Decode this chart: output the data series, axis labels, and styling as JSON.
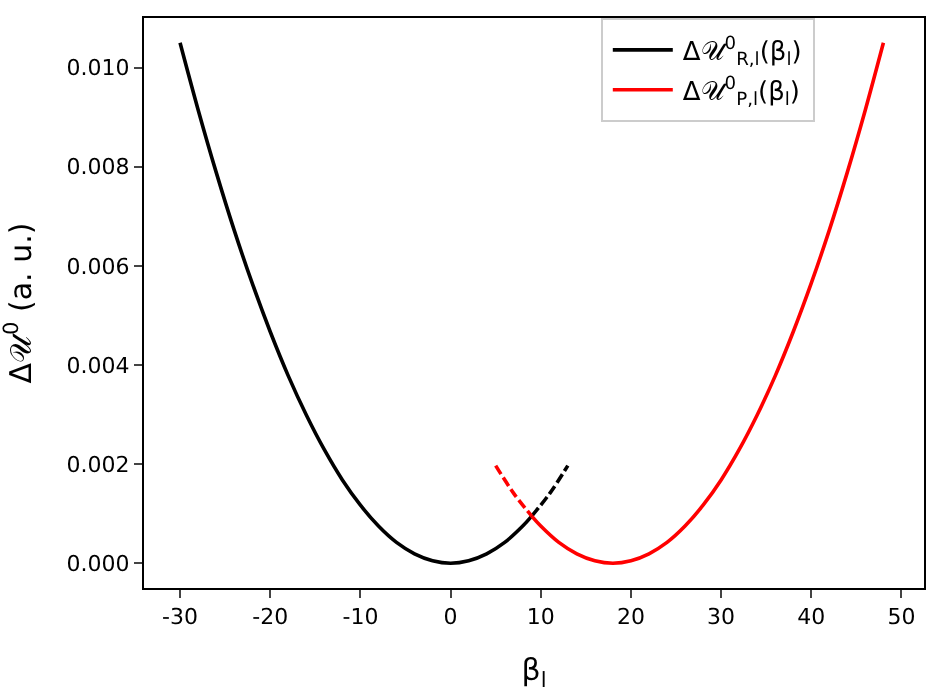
{
  "chart_data": {
    "type": "line",
    "xlabel": "β$_{l}$",
    "ylabel": "Δ𝒰$^{0}$ (a. u.)",
    "series": [
      {
        "name": "Δ𝒰$^{0}$$_{R,l}$(β$_{l}$)",
        "color": "#000000",
        "line_style": "solid",
        "x": [
          -30,
          -28,
          -26,
          -24,
          -22,
          -20,
          -18,
          -16,
          -14,
          -12,
          -10,
          -8,
          -6,
          -4,
          -2,
          0,
          2,
          4,
          6,
          8,
          9
        ],
        "values": [
          0.0105,
          0.00915,
          0.00789,
          0.00672,
          0.00565,
          0.00467,
          0.00378,
          0.00299,
          0.00229,
          0.00168,
          0.00117,
          0.00075,
          0.00042,
          0.00019,
          5e-05,
          0,
          5e-05,
          0.00019,
          0.00042,
          0.00075,
          0.00095
        ]
      },
      {
        "color": "#000000",
        "line_style": "dashed",
        "x": [
          9,
          11,
          13
        ],
        "values": [
          0.00095,
          0.00141,
          0.00197
        ]
      },
      {
        "name": "Δ𝒰$^{0}$$_{P,l}$(β$_{l}$)",
        "color": "#ff0000",
        "line_style": "solid",
        "x": [
          9,
          10,
          12,
          14,
          16,
          18,
          20,
          22,
          24,
          26,
          28,
          30,
          32,
          34,
          36,
          38,
          40,
          42,
          44,
          46,
          48
        ],
        "values": [
          0.00095,
          0.00075,
          0.00042,
          0.00019,
          5e-05,
          0,
          5e-05,
          0.00019,
          0.00042,
          0.00075,
          0.00117,
          0.00168,
          0.00229,
          0.00299,
          0.00378,
          0.00467,
          0.00565,
          0.00672,
          0.00789,
          0.00915,
          0.0105
        ]
      },
      {
        "color": "#ff0000",
        "line_style": "dashed",
        "x": [
          5,
          7,
          9
        ],
        "values": [
          0.00197,
          0.00141,
          0.00095
        ]
      }
    ],
    "xlim": [
      -34,
      52.5
    ],
    "xticks": [
      -30,
      -20,
      -10,
      0,
      10,
      20,
      30,
      40,
      50
    ],
    "ylim": [
      -0.0005,
      0.011
    ],
    "yticks": [
      {
        "value": 0,
        "label": "0.000"
      },
      {
        "value": 0.002,
        "label": "0.002"
      },
      {
        "value": 0.004,
        "label": "0.004"
      },
      {
        "value": 0.006,
        "label": "0.006"
      },
      {
        "value": 0.008,
        "label": "0.008"
      },
      {
        "value": 0.01,
        "label": "0.010"
      }
    ],
    "legend": "top right",
    "marker": "none"
  }
}
